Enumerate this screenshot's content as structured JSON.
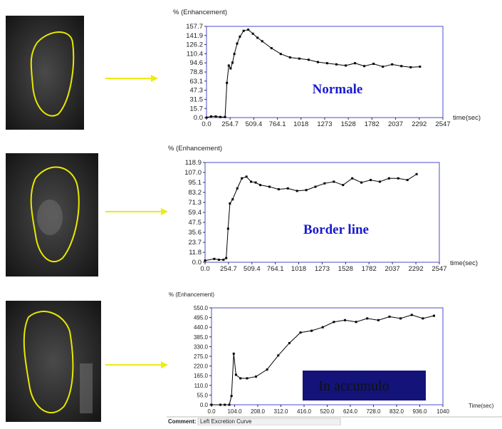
{
  "chart_data": [
    {
      "type": "line",
      "y_label": "% (Enhancement)",
      "x_label": "time(sec)",
      "annotation": "Normale",
      "x": [
        0,
        50,
        100,
        150,
        200,
        220,
        240,
        260,
        280,
        300,
        330,
        360,
        400,
        450,
        500,
        550,
        600,
        700,
        800,
        900,
        1000,
        1100,
        1200,
        1300,
        1400,
        1500,
        1600,
        1700,
        1800,
        1900,
        2000,
        2100,
        2200,
        2300
      ],
      "series": [
        {
          "color": "#000000",
          "values": [
            0,
            2,
            2,
            1,
            1,
            60,
            90,
            85,
            95,
            110,
            128,
            140,
            150,
            152,
            145,
            138,
            132,
            120,
            110,
            104,
            102,
            100,
            96,
            94,
            92,
            90,
            94,
            89,
            93,
            88,
            92,
            89,
            87,
            88
          ]
        }
      ],
      "xlim": [
        0,
        2547
      ],
      "ylim": [
        0,
        157.7
      ],
      "xticks": [
        {
          "value": 0,
          "label": "0.0"
        },
        254.7,
        509.4,
        764.1,
        1018,
        1273,
        1528,
        1782,
        2037,
        2292,
        2547
      ],
      "yticks": [
        {
          "value": 0,
          "label": "0.0"
        },
        15.7,
        31.5,
        47.3,
        63.1,
        78.8,
        94.6,
        110.4,
        126.2,
        141.9,
        157.7
      ],
      "frame_color": "#4b4bd0"
    },
    {
      "type": "line",
      "y_label": "% (Enhancement)",
      "x_label": "time(sec)",
      "annotation": "Border line",
      "x": [
        0,
        100,
        150,
        200,
        230,
        250,
        270,
        300,
        350,
        400,
        450,
        500,
        550,
        600,
        700,
        800,
        900,
        1000,
        1100,
        1200,
        1300,
        1400,
        1500,
        1600,
        1700,
        1800,
        1900,
        2000,
        2100,
        2200,
        2300
      ],
      "series": [
        {
          "color": "#000000",
          "values": [
            2,
            4,
            3,
            3,
            5,
            40,
            70,
            75,
            88,
            100,
            102,
            96,
            95,
            92,
            90,
            87,
            88,
            85,
            86,
            90,
            94,
            96,
            92,
            100,
            95,
            98,
            96,
            100,
            100,
            98,
            105
          ]
        }
      ],
      "xlim": [
        0,
        2547
      ],
      "ylim": [
        0,
        118.9
      ],
      "xticks": [
        {
          "value": 0,
          "label": "0.0"
        },
        254.7,
        509.4,
        764.1,
        1018,
        1273,
        1528,
        1782,
        2037,
        2292,
        2547
      ],
      "yticks": [
        {
          "value": 0,
          "label": "0.0"
        },
        11.8,
        23.7,
        35.6,
        47.5,
        59.4,
        71.3,
        83.2,
        95.1,
        {
          "value": 107,
          "label": "107.0"
        },
        118.9
      ],
      "frame_color": "#4b4bd0"
    },
    {
      "type": "line",
      "y_label": "% (Enhancement)",
      "x_label": "Time(sec)",
      "annotation": "In accumulo",
      "x": [
        0,
        40,
        60,
        80,
        90,
        100,
        110,
        130,
        160,
        200,
        250,
        300,
        350,
        400,
        450,
        500,
        550,
        600,
        650,
        700,
        750,
        800,
        850,
        900,
        950,
        1000
      ],
      "series": [
        {
          "color": "#000000",
          "values": [
            0,
            0,
            0,
            0,
            50,
            290,
            170,
            150,
            150,
            160,
            200,
            280,
            350,
            410,
            420,
            440,
            470,
            480,
            470,
            490,
            480,
            500,
            490,
            510,
            490,
            505
          ]
        }
      ],
      "xlim": [
        0,
        1040
      ],
      "ylim": [
        0,
        550
      ],
      "xticks": [
        {
          "value": 0,
          "label": "0.0"
        },
        {
          "value": 104,
          "label": "104.0"
        },
        {
          "value": 208,
          "label": "208.0"
        },
        {
          "value": 312,
          "label": "312.0"
        },
        {
          "value": 416,
          "label": "416.0"
        },
        {
          "value": 520,
          "label": "520.0"
        },
        {
          "value": 624,
          "label": "624.0"
        },
        {
          "value": 728,
          "label": "728.0"
        },
        {
          "value": 832,
          "label": "832.0"
        },
        {
          "value": 936,
          "label": "936.0"
        },
        1040
      ],
      "yticks": [
        {
          "value": 0,
          "label": "0.0"
        },
        {
          "value": 55,
          "label": "55.0"
        },
        {
          "value": 110,
          "label": "110.0"
        },
        {
          "value": 165,
          "label": "165.0"
        },
        {
          "value": 220,
          "label": "220.0"
        },
        {
          "value": 275,
          "label": "275.0"
        },
        {
          "value": 330,
          "label": "330.0"
        },
        {
          "value": 385,
          "label": "385.0"
        },
        {
          "value": 440,
          "label": "440.0"
        },
        {
          "value": 495,
          "label": "495.0"
        },
        {
          "value": 550,
          "label": "550.0"
        }
      ],
      "frame_color": "#4b4bd0"
    }
  ],
  "comment": {
    "label": "Comment:",
    "text": "Left Excretion Curve"
  }
}
